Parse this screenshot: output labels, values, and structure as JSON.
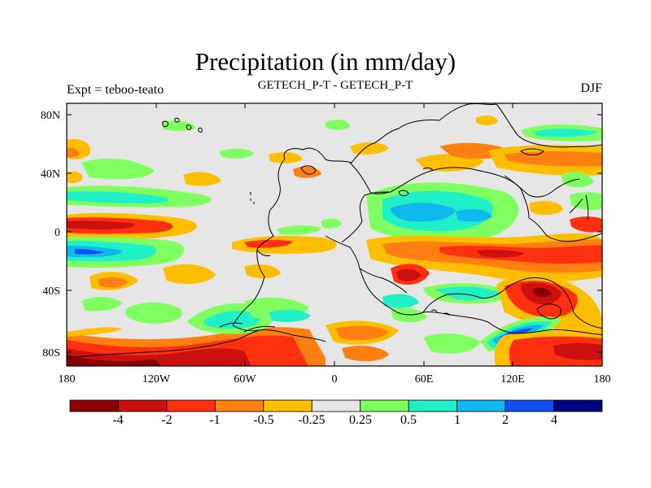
{
  "title": "Precipitation (in mm/day)",
  "left_label": "Expt = teboo-teato",
  "center_label": "GETECH_P-T - GETECH_P-T",
  "right_label": "DJF",
  "x_ticks": [
    "180",
    "120W",
    "60W",
    "0",
    "60E",
    "120E",
    "180"
  ],
  "y_ticks": [
    "80N",
    "40N",
    "0",
    "40S",
    "80S"
  ],
  "colorbar": {
    "colors": [
      "#8b0000",
      "#cc1010",
      "#ff3010",
      "#ff7f10",
      "#ffbf00",
      "#e6e6e6",
      "#80ff60",
      "#20f0c8",
      "#10b8f0",
      "#1050f0",
      "#000080"
    ],
    "labels": [
      "-4",
      "-2",
      "-1",
      "-0.5",
      "-0.25",
      "0.25",
      "0.5",
      "1",
      "2",
      "4"
    ]
  }
}
